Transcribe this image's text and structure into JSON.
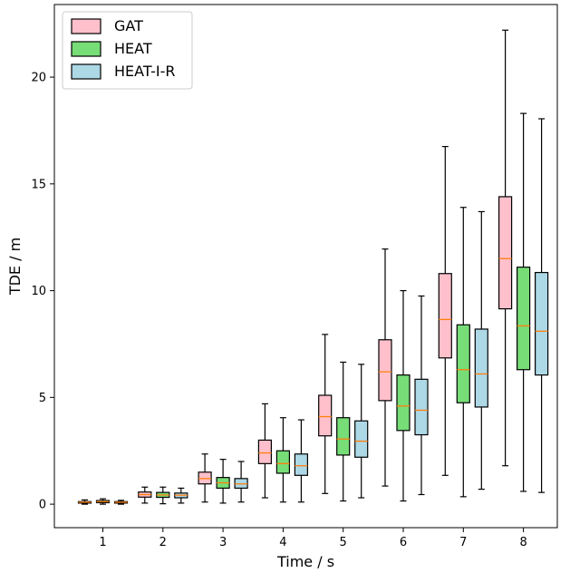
{
  "chart_data": {
    "type": "box",
    "title": "",
    "xlabel": "Time / s",
    "ylabel": "TDE / m",
    "ylim": [
      -1.1,
      23.4
    ],
    "yticks": [
      0,
      5,
      10,
      15,
      20
    ],
    "categories": [
      "1",
      "2",
      "3",
      "4",
      "5",
      "6",
      "7",
      "8"
    ],
    "legend": "top-left",
    "grid": false,
    "median_color": "#ff7f0e",
    "series": [
      {
        "name": "GAT",
        "color": "#ffc0cb",
        "boxes": [
          {
            "min": 0.0,
            "q1": 0.05,
            "median": 0.09,
            "q3": 0.12,
            "max": 0.2
          },
          {
            "min": 0.05,
            "q1": 0.33,
            "median": 0.45,
            "q3": 0.57,
            "max": 0.8
          },
          {
            "min": 0.1,
            "q1": 0.95,
            "median": 1.2,
            "q3": 1.5,
            "max": 2.35
          },
          {
            "min": 0.3,
            "q1": 1.9,
            "median": 2.4,
            "q3": 3.0,
            "max": 4.7
          },
          {
            "min": 0.5,
            "q1": 3.2,
            "median": 4.1,
            "q3": 5.1,
            "max": 7.95
          },
          {
            "min": 0.85,
            "q1": 4.85,
            "median": 6.2,
            "q3": 7.7,
            "max": 11.95
          },
          {
            "min": 1.35,
            "q1": 6.85,
            "median": 8.65,
            "q3": 10.8,
            "max": 16.75
          },
          {
            "min": 1.8,
            "q1": 9.15,
            "median": 11.5,
            "q3": 14.4,
            "max": 22.2
          }
        ]
      },
      {
        "name": "HEAT",
        "color": "#77dd77",
        "boxes": [
          {
            "min": 0.0,
            "q1": 0.07,
            "median": 0.12,
            "q3": 0.17,
            "max": 0.25
          },
          {
            "min": 0.02,
            "q1": 0.32,
            "median": 0.43,
            "q3": 0.55,
            "max": 0.8
          },
          {
            "min": 0.05,
            "q1": 0.75,
            "median": 1.0,
            "q3": 1.25,
            "max": 2.1
          },
          {
            "min": 0.1,
            "q1": 1.45,
            "median": 1.9,
            "q3": 2.5,
            "max": 4.05
          },
          {
            "min": 0.15,
            "q1": 2.3,
            "median": 3.05,
            "q3": 4.05,
            "max": 6.65
          },
          {
            "min": 0.15,
            "q1": 3.45,
            "median": 4.6,
            "q3": 6.05,
            "max": 10.0
          },
          {
            "min": 0.35,
            "q1": 4.75,
            "median": 6.3,
            "q3": 8.4,
            "max": 13.9
          },
          {
            "min": 0.6,
            "q1": 6.3,
            "median": 8.35,
            "q3": 11.1,
            "max": 18.3
          }
        ]
      },
      {
        "name": "HEAT-I-R",
        "color": "#add8e6",
        "boxes": [
          {
            "min": 0.0,
            "q1": 0.05,
            "median": 0.09,
            "q3": 0.12,
            "max": 0.18
          },
          {
            "min": 0.05,
            "q1": 0.3,
            "median": 0.42,
            "q3": 0.52,
            "max": 0.75
          },
          {
            "min": 0.1,
            "q1": 0.75,
            "median": 0.95,
            "q3": 1.2,
            "max": 2.0
          },
          {
            "min": 0.1,
            "q1": 1.35,
            "median": 1.8,
            "q3": 2.35,
            "max": 3.95
          },
          {
            "min": 0.3,
            "q1": 2.2,
            "median": 2.95,
            "q3": 3.9,
            "max": 6.55
          },
          {
            "min": 0.45,
            "q1": 3.25,
            "median": 4.4,
            "q3": 5.85,
            "max": 9.75
          },
          {
            "min": 0.7,
            "q1": 4.55,
            "median": 6.1,
            "q3": 8.2,
            "max": 13.7
          },
          {
            "min": 0.55,
            "q1": 6.05,
            "median": 8.1,
            "q3": 10.85,
            "max": 18.05
          }
        ]
      }
    ]
  }
}
